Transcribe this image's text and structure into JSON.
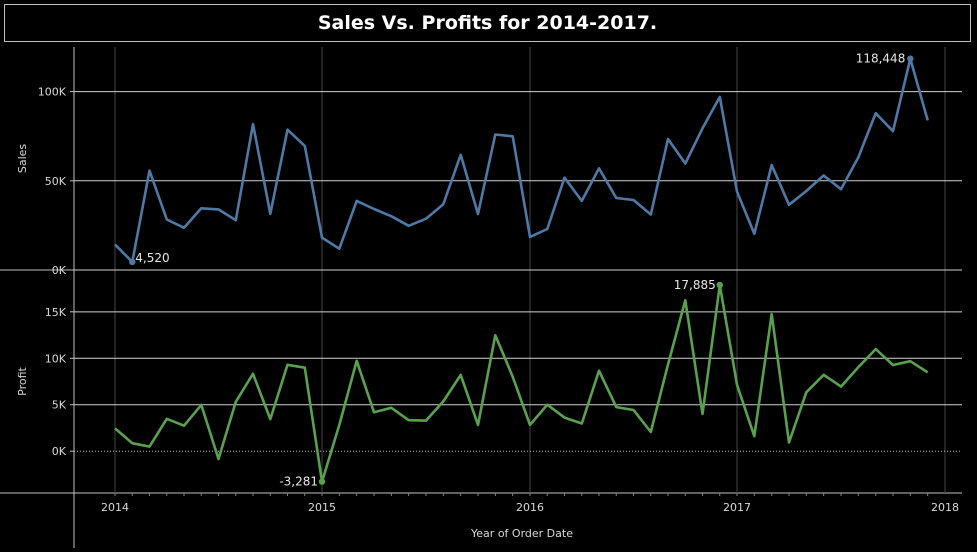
{
  "title": "Sales Vs. Profits for 2014-2017.",
  "chart_data": {
    "type": "line",
    "title": "Sales Vs. Profits for 2014-2017.",
    "xlabel": "Year of Order Date",
    "x_ticks": [
      "2014",
      "2015",
      "2016",
      "2017",
      "2018"
    ],
    "x_months": [
      "2014-01",
      "2014-02",
      "2014-03",
      "2014-04",
      "2014-05",
      "2014-06",
      "2014-07",
      "2014-08",
      "2014-09",
      "2014-10",
      "2014-11",
      "2014-12",
      "2015-01",
      "2015-02",
      "2015-03",
      "2015-04",
      "2015-05",
      "2015-06",
      "2015-07",
      "2015-08",
      "2015-09",
      "2015-10",
      "2015-11",
      "2015-12",
      "2016-01",
      "2016-02",
      "2016-03",
      "2016-04",
      "2016-05",
      "2016-06",
      "2016-07",
      "2016-08",
      "2016-09",
      "2016-10",
      "2016-11",
      "2016-12",
      "2017-01",
      "2017-02",
      "2017-03",
      "2017-04",
      "2017-05",
      "2017-06",
      "2017-07",
      "2017-08",
      "2017-09",
      "2017-10",
      "2017-11",
      "2017-12"
    ],
    "grid": true,
    "panels": [
      {
        "name": "Sales",
        "ylabel": "Sales",
        "ylim": [
          0,
          125000
        ],
        "y_ticks": [
          {
            "value": 0,
            "label": "0K"
          },
          {
            "value": 50000,
            "label": "50K"
          },
          {
            "value": 100000,
            "label": "100K"
          }
        ],
        "color": "#4e79a7",
        "values": [
          14237,
          4520,
          55691,
          28295,
          23648,
          34595,
          33946,
          27909,
          81777,
          31453,
          78628,
          69546,
          18174,
          11951,
          38726,
          34195,
          30132,
          24797,
          28765,
          36898,
          64596,
          31405,
          75973,
          74920,
          18542,
          22979,
          51716,
          38750,
          56988,
          40344,
          39262,
          31115,
          73410,
          59688,
          79412,
          96999,
          43971,
          20301,
          58872,
          36522,
          44261,
          52982,
          45264,
          63121,
          87867,
          77777,
          118448,
          83829
        ],
        "annotations": [
          {
            "index": 1,
            "label": "4,520"
          },
          {
            "index": 46,
            "label": "118,448"
          }
        ]
      },
      {
        "name": "Profit",
        "ylabel": "Profit",
        "ylim": [
          -4500,
          19500
        ],
        "y_ticks": [
          {
            "value": 0,
            "label": "0K"
          },
          {
            "value": 5000,
            "label": "5K"
          },
          {
            "value": 10000,
            "label": "10K"
          },
          {
            "value": 15000,
            "label": "15K"
          }
        ],
        "color": "#59a14f",
        "values": [
          2450,
          862,
          499,
          3488,
          2739,
          4977,
          -841,
          5318,
          8328,
          3448,
          9292,
          8983,
          -3281,
          2814,
          9732,
          4188,
          4668,
          3335,
          3289,
          5355,
          8209,
          2817,
          12474,
          8016,
          2824,
          5004,
          3612,
          2977,
          8662,
          4750,
          4432,
          2062,
          9328,
          16243,
          4011,
          17885,
          7140,
          1613,
          14752,
          933,
          6342,
          8223,
          6952,
          9040,
          10991,
          9275,
          9690,
          8483
        ],
        "annotations": [
          {
            "index": 12,
            "label": "-3,281"
          },
          {
            "index": 35,
            "label": "17,885"
          }
        ]
      }
    ]
  }
}
